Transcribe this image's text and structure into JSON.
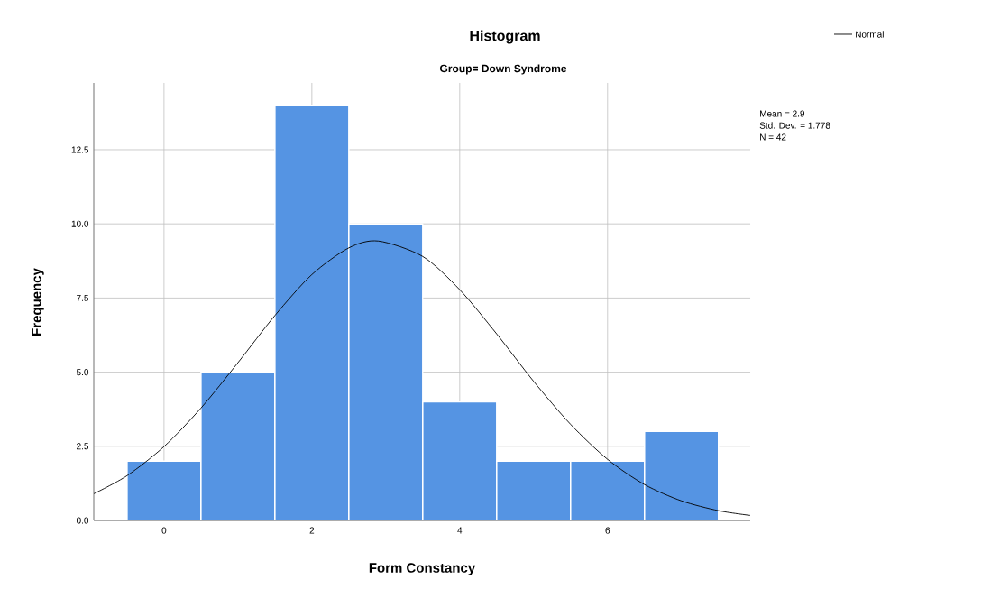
{
  "chart_data": {
    "type": "histogram",
    "title": "Histogram",
    "subtitle": "Group= Down Syndrome",
    "xlabel": "Form Constancy",
    "ylabel": "Frequency",
    "bins": [
      -0.5,
      0.5,
      1.5,
      2.5,
      3.5,
      4.5,
      5.5,
      6.5,
      7.5
    ],
    "series": [
      {
        "color": "#5594e3",
        "values": [
          2,
          5,
          14,
          10,
          4,
          2,
          2,
          3
        ]
      },
      {
        "type": "line",
        "name": "Normal",
        "color": "#000000",
        "x": [
          -0.95,
          -0.5,
          0,
          0.5,
          1,
          1.5,
          2,
          2.5,
          2.9,
          3.5,
          4,
          4.5,
          5,
          5.5,
          6,
          6.5,
          7,
          7.5,
          7.93
        ],
        "values": [
          0.9,
          1.51,
          2.49,
          3.79,
          5.32,
          6.91,
          8.29,
          9.19,
          9.42,
          8.9,
          7.78,
          6.29,
          4.69,
          3.24,
          2.06,
          1.21,
          0.66,
          0.33,
          0.17
        ]
      }
    ],
    "xlim": [
      -0.95,
      7.93
    ],
    "ylim": [
      0,
      14.75
    ],
    "xticks": [
      0,
      2,
      4,
      6
    ],
    "yticks": [
      {
        "value": 0,
        "label": "0.0"
      },
      {
        "value": 2.5,
        "label": "2.5"
      },
      {
        "value": 5,
        "label": "5.0"
      },
      {
        "value": 7.5,
        "label": "7.5"
      },
      {
        "value": 10,
        "label": "10.0"
      },
      {
        "value": 12.5,
        "label": "12.5"
      }
    ],
    "grid": true,
    "legend": "top right",
    "annotations": [
      "Mean = 2.9",
      "Std. Dev. = 1.778",
      "N = 42"
    ]
  }
}
